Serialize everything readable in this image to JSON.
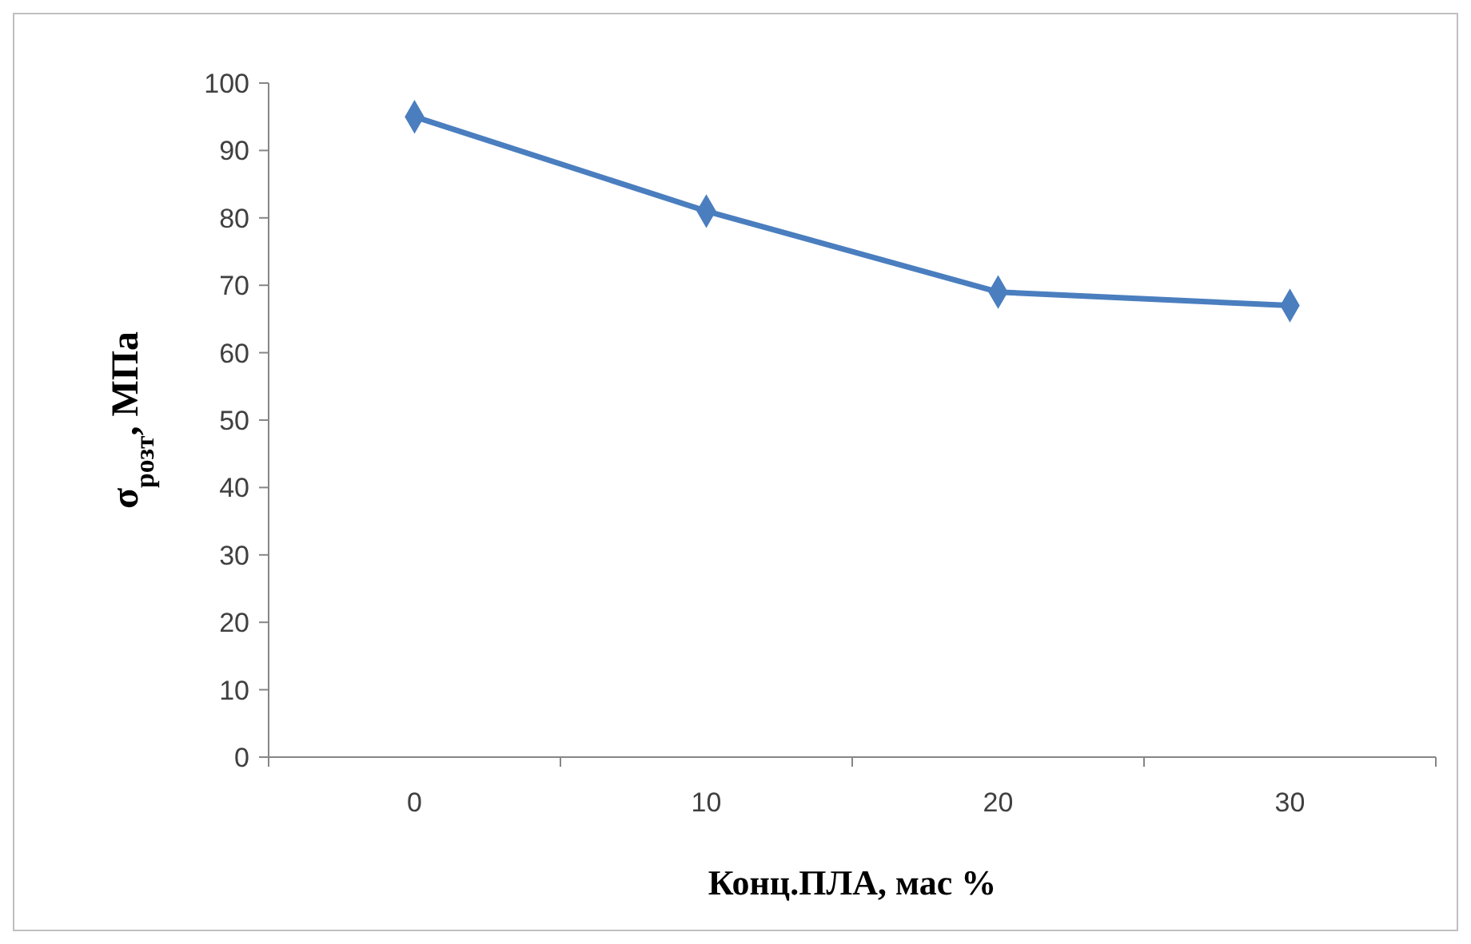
{
  "chart_data": {
    "type": "line",
    "xlabel": "Конц.ПЛА, мас %",
    "ylabel": "σ$_{розт}$, МПа",
    "categories": [
      "0",
      "10",
      "20",
      "30"
    ],
    "series": [
      {
        "color": "#4a7ebf",
        "values": [
          95,
          81,
          69,
          67
        ]
      }
    ],
    "ylim": [
      0,
      100
    ],
    "yticks": [
      0,
      10,
      20,
      30,
      40,
      50,
      60,
      70,
      80,
      90,
      100
    ],
    "grid": false,
    "marker": "diamond",
    "line_style": "solid"
  }
}
